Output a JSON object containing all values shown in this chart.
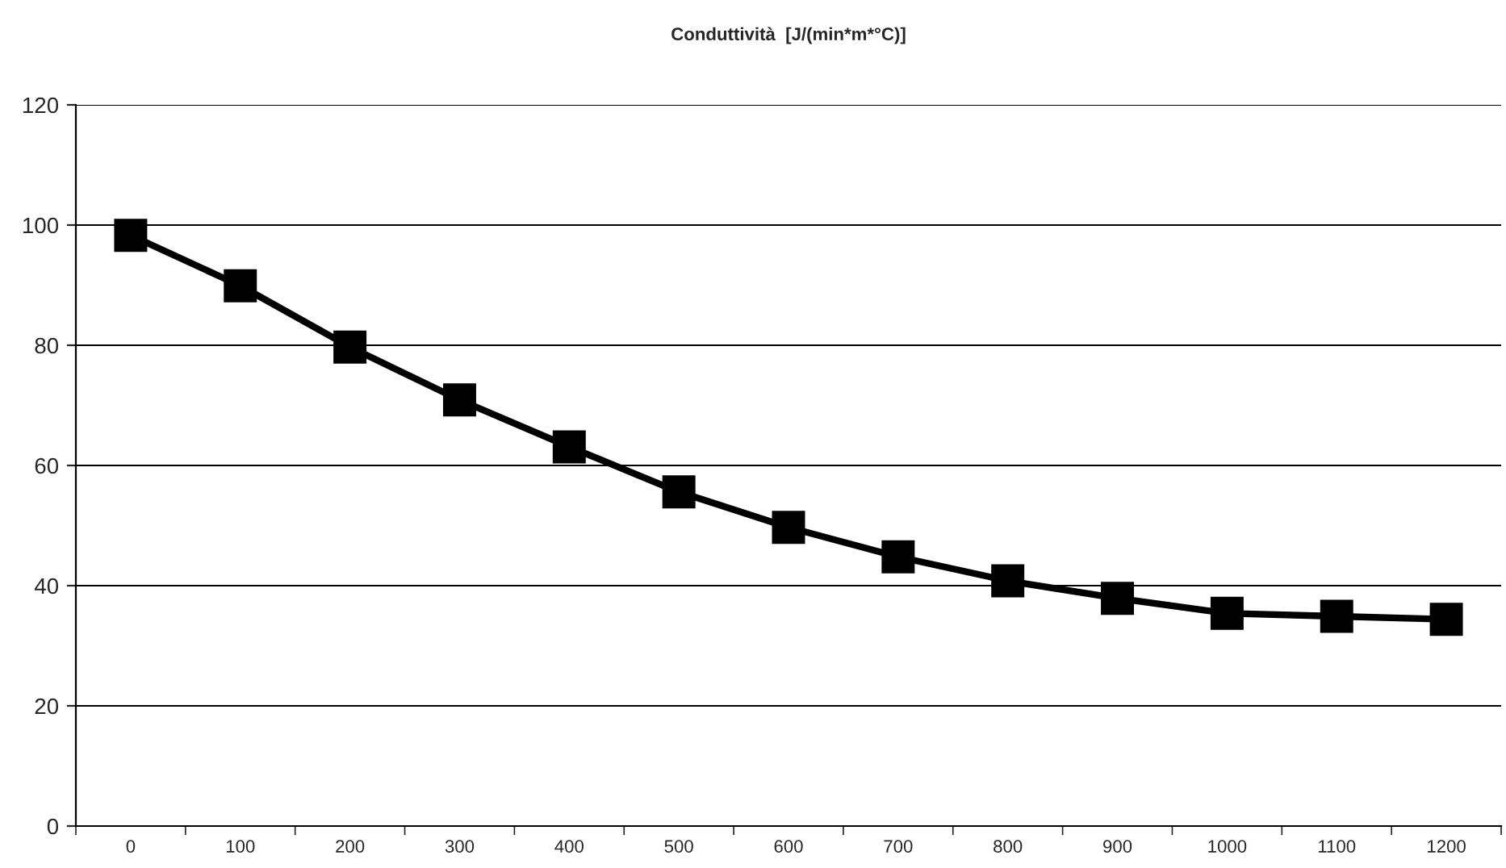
{
  "chart_data": {
    "type": "line",
    "title": "Conduttività  [J/(min*m*°C)]",
    "categories": [
      "0",
      "100",
      "200",
      "300",
      "400",
      "500",
      "600",
      "700",
      "800",
      "900",
      "1000",
      "1100",
      "1200"
    ],
    "series": [
      {
        "color": "#000000",
        "values": [
          98.3,
          89.9,
          79.7,
          70.9,
          63.1,
          55.6,
          49.7,
          44.8,
          40.8,
          37.9,
          35.4,
          34.9,
          34.4
        ]
      }
    ],
    "ylim": [
      0,
      120
    ],
    "yticks": [
      0,
      20,
      40,
      60,
      80,
      100,
      120
    ],
    "grid": "y",
    "marker": "square",
    "line_style": "solid"
  }
}
